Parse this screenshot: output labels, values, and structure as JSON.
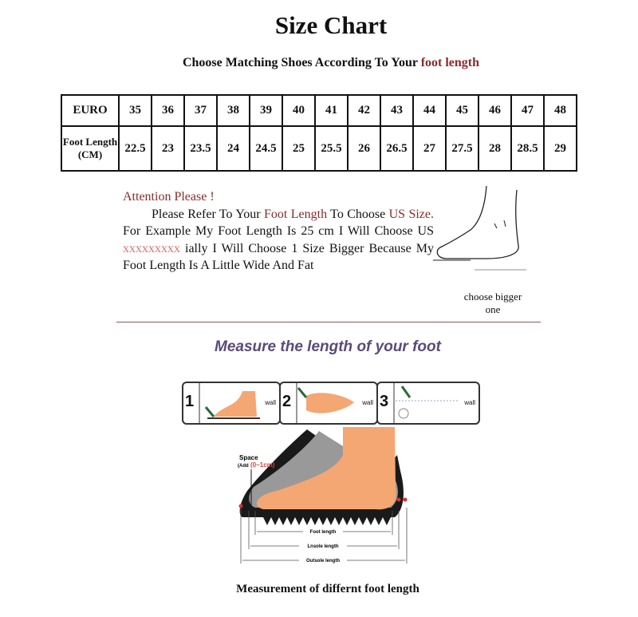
{
  "title": "Size Chart",
  "subtitle": {
    "prefix": "Choose Matching Shoes According To Your ",
    "highlight": "foot length"
  },
  "size_table": {
    "row_headers": [
      "EURO",
      "Foot Length (CM)"
    ],
    "euro": [
      "35",
      "36",
      "37",
      "38",
      "39",
      "40",
      "41",
      "42",
      "43",
      "44",
      "45",
      "46",
      "47",
      "48"
    ],
    "foot_length_cm": [
      "22.5",
      "23",
      "23.5",
      "24",
      "24.5",
      "25",
      "25.5",
      "26",
      "26.5",
      "27",
      "27.5",
      "28",
      "28.5",
      "29"
    ]
  },
  "note": {
    "heading": "Attention Please !",
    "p1": "Please Refer To Your ",
    "p1_highlight": "Foot Length",
    "p2": " To Choose ",
    "p2_highlight": "US Size.",
    "p3": " For Example My Foot Length Is 25 cm I Will Choose US ",
    "p3_highlight": "xxxxxxxxx",
    "p4": " ially I Will Choose 1 Size Bigger Because My Foot Length Is A Little Wide And Fat"
  },
  "choose_label": "choose bigger one",
  "measure_heading": "Measure the length of your foot",
  "steps": [
    {
      "number": "1",
      "wall": "wall"
    },
    {
      "number": "2",
      "wall": "wall"
    },
    {
      "number": "3",
      "wall": "wall"
    }
  ],
  "diagram": {
    "space_label": "Space",
    "space_add": "(Add",
    "space_range": "(0~1cm)",
    "foot_length": "Foot length",
    "insole_length": "Lnsole length",
    "outsole_length": "Outsole length"
  },
  "caption": "Measurement of differnt foot length",
  "colors": {
    "accent_red": "#8b2a2a",
    "pink": "#e07070",
    "heading_purple": "#5a4a78",
    "foot": "#f4a772"
  }
}
